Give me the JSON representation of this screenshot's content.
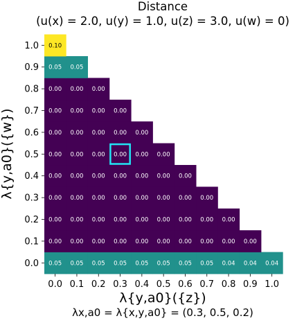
{
  "chart_data": {
    "type": "heatmap",
    "title": "Distance",
    "subtitle": "(u(x) = 2.0, u(y) = 1.0, u(z) = 3.0, u(w) = 0)",
    "xlabel": "λ{y,a0}({z})",
    "ylabel": "λ{y,a0}({w})",
    "footer": "λx,a0 = λ{x,y,a0} = (0.3, 0.5, 0.2)",
    "x_ticks": [
      "0.0",
      "0.1",
      "0.2",
      "0.3",
      "0.4",
      "0.5",
      "0.6",
      "0.7",
      "0.8",
      "0.9",
      "1.0"
    ],
    "y_ticks": [
      "0.0",
      "0.1",
      "0.2",
      "0.3",
      "0.4",
      "0.5",
      "0.6",
      "0.7",
      "0.8",
      "0.9",
      "1.0"
    ],
    "highlight": {
      "x": 0.3,
      "y": 0.5
    },
    "colorscale": {
      "low": "#440154",
      "mid": "#21918c",
      "high": "#fde725"
    },
    "highlight_color": "#22e5f5",
    "rows": [
      {
        "y": 0.0,
        "values": [
          0.05,
          0.05,
          0.05,
          0.05,
          0.05,
          0.05,
          0.05,
          0.05,
          0.04,
          0.04,
          0.04
        ]
      },
      {
        "y": 0.1,
        "values": [
          0.0,
          0.0,
          0.0,
          0.0,
          0.0,
          0.0,
          0.0,
          0.0,
          0.0,
          0.0
        ]
      },
      {
        "y": 0.2,
        "values": [
          0.0,
          0.0,
          0.0,
          0.0,
          0.0,
          0.0,
          0.0,
          0.0,
          0.0
        ]
      },
      {
        "y": 0.3,
        "values": [
          0.0,
          0.0,
          0.0,
          0.0,
          0.0,
          0.0,
          0.0,
          0.0
        ]
      },
      {
        "y": 0.4,
        "values": [
          0.0,
          0.0,
          0.0,
          0.0,
          0.0,
          0.0,
          0.0
        ]
      },
      {
        "y": 0.5,
        "values": [
          0.0,
          0.0,
          0.0,
          0.0,
          0.0,
          0.0
        ]
      },
      {
        "y": 0.6,
        "values": [
          0.0,
          0.0,
          0.0,
          0.0,
          0.0
        ]
      },
      {
        "y": 0.7,
        "values": [
          0.0,
          0.0,
          0.0,
          0.0
        ]
      },
      {
        "y": 0.8,
        "values": [
          0.0,
          0.0,
          0.0
        ]
      },
      {
        "y": 0.9,
        "values": [
          0.05,
          0.05
        ]
      },
      {
        "y": 1.0,
        "values": [
          0.1
        ]
      }
    ]
  }
}
